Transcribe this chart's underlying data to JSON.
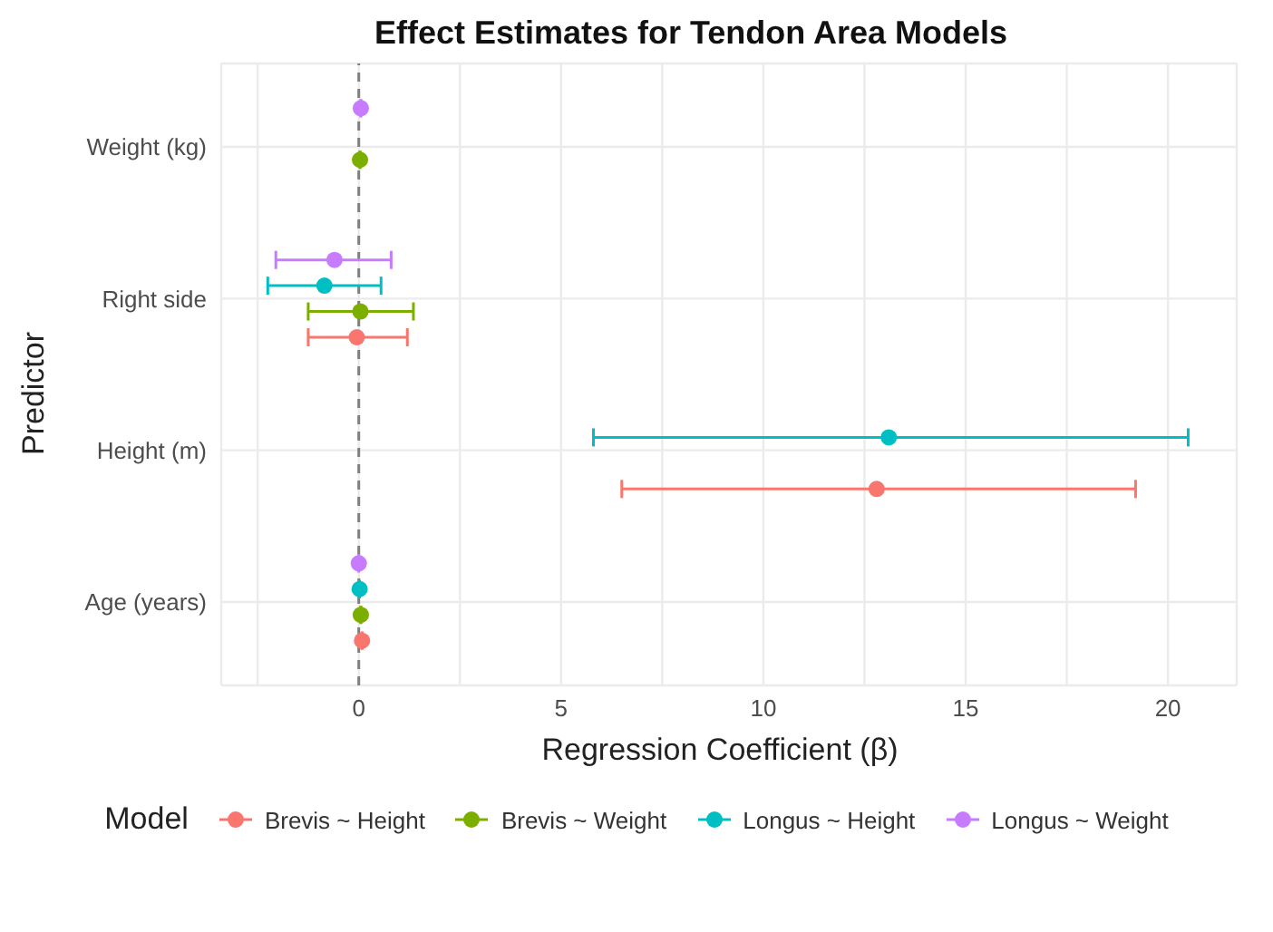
{
  "chart_data": {
    "type": "scatter",
    "orientation": "horizontal",
    "title": "Effect Estimates for Tendon Area Models",
    "xlabel": "Regression Coefficient (β)",
    "ylabel": "Predictor",
    "legend_title": "Model",
    "legend": "bottom",
    "marker": "circle",
    "grid": true,
    "categories": [
      "Weight (kg)",
      "Right side",
      "Height (m)",
      "Age (years)"
    ],
    "xlim": [
      -3.4,
      21.7
    ],
    "xticks": [
      {
        "value": -2.5,
        "label": null
      },
      0,
      {
        "value": 2.5,
        "label": null
      },
      5,
      {
        "value": 7.5,
        "label": null
      },
      10,
      {
        "value": 12.5,
        "label": null
      },
      15,
      {
        "value": 17.5,
        "label": null
      },
      20
    ],
    "ref_lines": [
      {
        "axis": "x",
        "value": 0,
        "color": "#7f7f7f",
        "line_style": "dashed"
      }
    ],
    "series": [
      {
        "name": "Brevis ~ Height",
        "color": "#f8766d",
        "values": [
          null,
          -0.05,
          12.8,
          0.08
        ],
        "errors": [
          null,
          [
            -1.25,
            1.2
          ],
          [
            6.5,
            19.2
          ],
          null
        ]
      },
      {
        "name": "Brevis ~ Weight",
        "color": "#7cae00",
        "values": [
          0.03,
          0.04,
          null,
          0.05
        ],
        "errors": [
          null,
          [
            -1.25,
            1.35
          ],
          null,
          null
        ]
      },
      {
        "name": "Longus ~ Height",
        "color": "#00bfc4",
        "values": [
          null,
          -0.85,
          13.1,
          0.02
        ],
        "errors": [
          null,
          [
            -2.25,
            0.55
          ],
          [
            5.8,
            20.5
          ],
          null
        ]
      },
      {
        "name": "Longus ~ Weight",
        "color": "#c77cff",
        "values": [
          0.05,
          -0.6,
          null,
          0
        ],
        "errors": [
          null,
          [
            -2.05,
            0.8
          ],
          null,
          null
        ]
      }
    ]
  }
}
